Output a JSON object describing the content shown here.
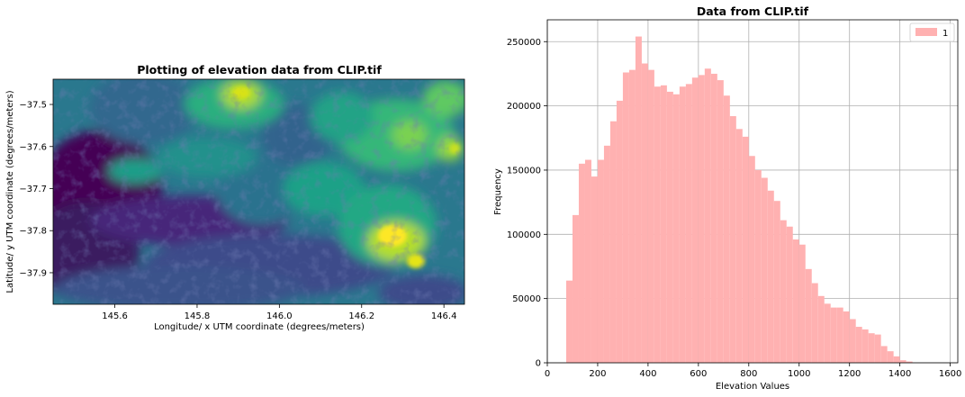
{
  "chart_data": [
    {
      "type": "heatmap",
      "title": "Plotting of elevation data from CLIP.tif",
      "xlabel": "Longitude/ x UTM coordinate (degrees/meters)",
      "ylabel": "Latitude/ y UTM coordinate (degrees/meters)",
      "xlim": [
        145.45,
        146.45
      ],
      "ylim": [
        -37.975,
        -37.44
      ],
      "x_ticks": [
        145.6,
        145.8,
        146.0,
        146.2,
        146.4
      ],
      "x_tick_labels": [
        "145.6",
        "145.8",
        "146.0",
        "146.2",
        "146.4"
      ],
      "y_ticks": [
        -37.5,
        -37.6,
        -37.7,
        -37.8,
        -37.9
      ],
      "y_tick_labels": [
        "−37.5",
        "−37.6",
        "−37.7",
        "−37.8",
        "−37.9"
      ],
      "colormap": "viridis",
      "grid": false
    },
    {
      "type": "bar",
      "subtype": "histogram",
      "title": "Data from CLIP.tif",
      "xlabel": "Elevation Values",
      "ylabel": "Frequency",
      "xlim": [
        0,
        1630
      ],
      "ylim": [
        0,
        267000
      ],
      "bin_start": 75,
      "bin_width": 25,
      "series": [
        {
          "name": "1",
          "color": "#ffb1b1",
          "values": [
            64000,
            115000,
            155000,
            158000,
            145000,
            158000,
            169000,
            188000,
            204000,
            226000,
            228000,
            254000,
            233000,
            228000,
            215000,
            216000,
            211000,
            209000,
            215000,
            217000,
            222000,
            224000,
            229000,
            225000,
            220000,
            208000,
            192000,
            182000,
            176000,
            161000,
            150000,
            144000,
            134000,
            126000,
            111000,
            106000,
            96000,
            92000,
            73000,
            62000,
            52000,
            46000,
            43000,
            43000,
            40000,
            34000,
            28000,
            26000,
            23000,
            22000,
            13000,
            9000,
            5000,
            2000,
            1000
          ]
        }
      ],
      "x_ticks": [
        0,
        200,
        400,
        600,
        800,
        1000,
        1200,
        1400,
        1600
      ],
      "x_tick_labels": [
        "0",
        "200",
        "400",
        "600",
        "800",
        "1000",
        "1200",
        "1400",
        "1600"
      ],
      "y_ticks": [
        0,
        50000,
        100000,
        150000,
        200000,
        250000
      ],
      "y_tick_labels": [
        "0",
        "50000",
        "100000",
        "150000",
        "200000",
        "250000"
      ],
      "grid": true,
      "legend": "top-right"
    }
  ]
}
